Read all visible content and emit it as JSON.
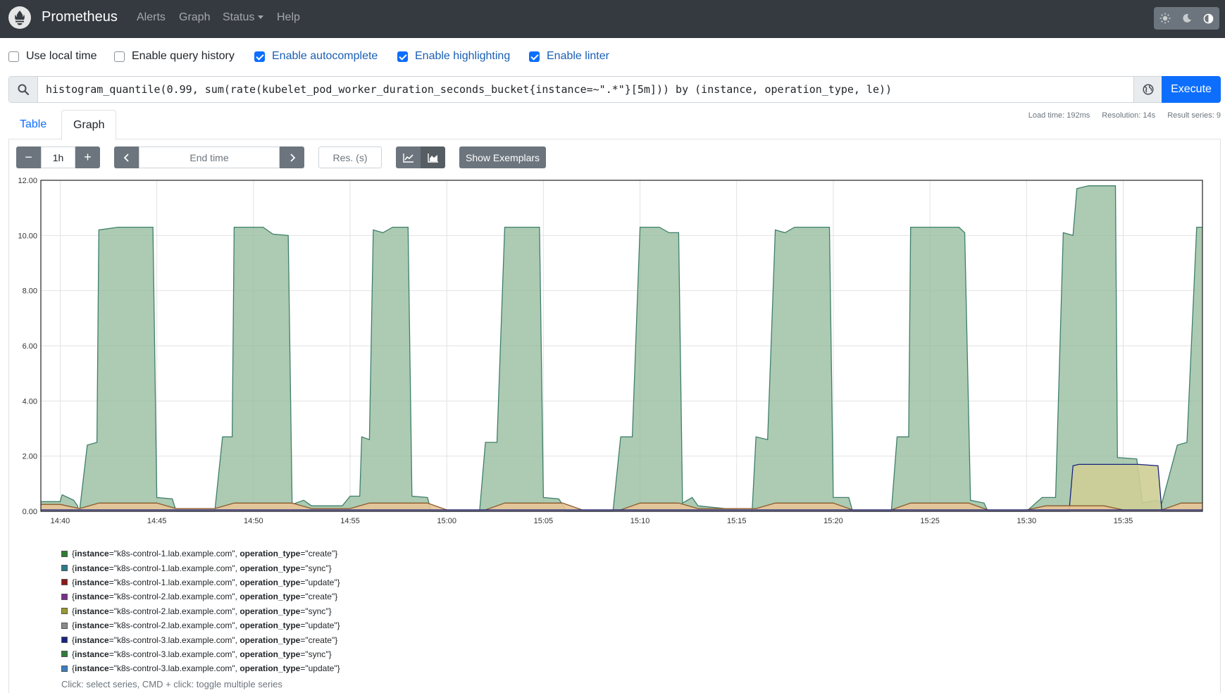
{
  "navbar": {
    "brand": "Prometheus",
    "links": [
      "Alerts",
      "Graph",
      "Status",
      "Help"
    ],
    "theme_icons": [
      "sun-icon",
      "moon-icon",
      "half-circle-icon"
    ]
  },
  "options": [
    {
      "label": "Use local time",
      "checked": false
    },
    {
      "label": "Enable query history",
      "checked": false
    },
    {
      "label": "Enable autocomplete",
      "checked": true
    },
    {
      "label": "Enable highlighting",
      "checked": true
    },
    {
      "label": "Enable linter",
      "checked": true
    }
  ],
  "query": {
    "expression": "histogram_quantile(0.99, sum(rate(kubelet_pod_worker_duration_seconds_bucket{instance=~\".*\"}[5m])) by (instance, operation_type, le))",
    "execute_label": "Execute"
  },
  "tabs": {
    "table": "Table",
    "graph": "Graph"
  },
  "stats": {
    "load_time": "Load time: 192ms",
    "resolution": "Resolution: 14s",
    "result_series": "Result series: 9"
  },
  "controls": {
    "minus": "−",
    "range": "1h",
    "plus": "+",
    "end_time_placeholder": "End time",
    "resolution_placeholder": "Res. (s)",
    "show_exemplars": "Show Exemplars"
  },
  "legend_items": [
    {
      "instance": "k8s-control-1.lab.example.com",
      "operation_type": "create",
      "color": "#2e7d32"
    },
    {
      "instance": "k8s-control-1.lab.example.com",
      "operation_type": "sync",
      "color": "#2b7b8a"
    },
    {
      "instance": "k8s-control-1.lab.example.com",
      "operation_type": "update",
      "color": "#8b1a1a"
    },
    {
      "instance": "k8s-control-2.lab.example.com",
      "operation_type": "create",
      "color": "#7b2d8b"
    },
    {
      "instance": "k8s-control-2.lab.example.com",
      "operation_type": "sync",
      "color": "#9a9a33"
    },
    {
      "instance": "k8s-control-2.lab.example.com",
      "operation_type": "update",
      "color": "#8c8c8c"
    },
    {
      "instance": "k8s-control-3.lab.example.com",
      "operation_type": "create",
      "color": "#1a237e"
    },
    {
      "instance": "k8s-control-3.lab.example.com",
      "operation_type": "sync",
      "color": "#2f7d3a"
    },
    {
      "instance": "k8s-control-3.lab.example.com",
      "operation_type": "update",
      "color": "#3b7fbf"
    }
  ],
  "legend_hint": "Click: select series, CMD + click: toggle multiple series",
  "chart_data": {
    "type": "area",
    "stacked": true,
    "title": "",
    "xlabel": "",
    "ylabel": "",
    "y_ticks": [
      "0.00",
      "2.00",
      "4.00",
      "6.00",
      "8.00",
      "10.00",
      "12.00"
    ],
    "x_ticks": [
      "14:40",
      "14:45",
      "14:50",
      "14:55",
      "15:00",
      "15:05",
      "15:10",
      "15:15",
      "15:20",
      "15:25",
      "15:30",
      "15:35"
    ],
    "xlim_minutes": [
      -1.0,
      59.1
    ],
    "ylim": [
      0,
      12
    ],
    "grid": true,
    "x_unit": "minutes after 14:40",
    "series": [
      {
        "name": "{instance=\"k8s-control-3.lab.example.com\", operation_type=\"sync\"}",
        "color": "#2f7d3a",
        "fill": "rgba(144,185,152,0.75)",
        "line": "#3f7f6a",
        "points": [
          [
            -1,
            0.35
          ],
          [
            0,
            0.35
          ],
          [
            0.1,
            0.6
          ],
          [
            0.7,
            0.4
          ],
          [
            0.9,
            0.2
          ],
          [
            0.95,
            0
          ],
          [
            1.0,
            0
          ],
          [
            1.4,
            2.4
          ],
          [
            1.9,
            2.5
          ],
          [
            2.0,
            10.2
          ],
          [
            3.0,
            10.3
          ],
          [
            4.8,
            10.3
          ],
          [
            5.0,
            0.5
          ],
          [
            5.8,
            0.45
          ],
          [
            6.0,
            0
          ],
          [
            8.0,
            0
          ],
          [
            8.4,
            2.7
          ],
          [
            8.9,
            2.7
          ],
          [
            9.0,
            10.3
          ],
          [
            10.5,
            10.3
          ],
          [
            11.0,
            10.05
          ],
          [
            11.8,
            10.0
          ],
          [
            12.0,
            0.25
          ],
          [
            12.6,
            0.4
          ],
          [
            13.0,
            0.2
          ],
          [
            14.6,
            0.2
          ],
          [
            15.0,
            0.55
          ],
          [
            15.5,
            0.55
          ],
          [
            15.6,
            2.7
          ],
          [
            16.0,
            2.6
          ],
          [
            16.2,
            10.2
          ],
          [
            16.7,
            10.1
          ],
          [
            17.2,
            10.3
          ],
          [
            18.0,
            10.3
          ],
          [
            18.2,
            0.55
          ],
          [
            19.0,
            0.5
          ],
          [
            19.2,
            0
          ],
          [
            21.7,
            0
          ],
          [
            22.0,
            2.5
          ],
          [
            22.6,
            2.5
          ],
          [
            23.0,
            10.3
          ],
          [
            24.8,
            10.3
          ],
          [
            25.0,
            0.5
          ],
          [
            25.8,
            0.45
          ],
          [
            26.2,
            0
          ],
          [
            28.6,
            0
          ],
          [
            29.0,
            2.7
          ],
          [
            29.6,
            2.7
          ],
          [
            30.0,
            10.3
          ],
          [
            31.0,
            10.3
          ],
          [
            31.5,
            10.1
          ],
          [
            32.0,
            10.1
          ],
          [
            32.2,
            0.3
          ],
          [
            32.7,
            0.5
          ],
          [
            33.0,
            0.2
          ],
          [
            35.8,
            0
          ],
          [
            36.0,
            2.7
          ],
          [
            36.6,
            2.6
          ],
          [
            37.0,
            10.2
          ],
          [
            37.5,
            10.1
          ],
          [
            38.0,
            10.3
          ],
          [
            39.8,
            10.3
          ],
          [
            40.0,
            0.5
          ],
          [
            40.8,
            0.5
          ],
          [
            41.0,
            0
          ],
          [
            43.0,
            0
          ],
          [
            43.3,
            2.7
          ],
          [
            43.9,
            2.7
          ],
          [
            44.0,
            10.3
          ],
          [
            46.5,
            10.3
          ],
          [
            46.8,
            10.1
          ],
          [
            47.1,
            0.4
          ],
          [
            47.8,
            0.3
          ],
          [
            48.0,
            0
          ],
          [
            50.0,
            0
          ],
          [
            50.8,
            0.5
          ],
          [
            51.5,
            0.5
          ],
          [
            51.9,
            10.1
          ],
          [
            52.4,
            10.0
          ],
          [
            52.6,
            11.7
          ],
          [
            53.2,
            11.8
          ],
          [
            54.6,
            11.8
          ],
          [
            54.7,
            1.95
          ],
          [
            55.7,
            1.9
          ],
          [
            56.0,
            0.3
          ],
          [
            56.7,
            0.4
          ],
          [
            57.0,
            0.3
          ],
          [
            57.8,
            2.4
          ],
          [
            58.3,
            2.5
          ],
          [
            58.8,
            10.3
          ],
          [
            59.1,
            10.3
          ]
        ]
      },
      {
        "name": "{instance=\"k8s-control-2.lab.example.com\", operation_type=\"sync\"}",
        "color": "#9a9a33",
        "fill": "rgba(206,206,150,0.9)",
        "line": "#1a237e",
        "points": [
          [
            -1,
            0
          ],
          [
            52.2,
            0
          ],
          [
            52.4,
            1.65
          ],
          [
            52.7,
            1.7
          ],
          [
            55.8,
            1.7
          ],
          [
            56.8,
            1.65
          ],
          [
            57.0,
            0
          ],
          [
            59.1,
            0
          ]
        ]
      },
      {
        "name": "{instance=\"k8s-control-1.lab.example.com\", operation_type=\"update\"}",
        "color": "#8b1a1a",
        "fill": "rgba(232,196,150,0.9)",
        "line": "#8b5a2b",
        "points": [
          [
            -1,
            0.25
          ],
          [
            0,
            0.25
          ],
          [
            1,
            0.1
          ],
          [
            2,
            0.3
          ],
          [
            5,
            0.3
          ],
          [
            6,
            0.1
          ],
          [
            8,
            0.1
          ],
          [
            9,
            0.3
          ],
          [
            12,
            0.3
          ],
          [
            13,
            0.1
          ],
          [
            15,
            0.1
          ],
          [
            16,
            0.3
          ],
          [
            19,
            0.3
          ],
          [
            20,
            0.05
          ],
          [
            22,
            0.05
          ],
          [
            23,
            0.3
          ],
          [
            26,
            0.3
          ],
          [
            27,
            0.05
          ],
          [
            29,
            0.05
          ],
          [
            30,
            0.3
          ],
          [
            32,
            0.3
          ],
          [
            33,
            0.1
          ],
          [
            36,
            0.1
          ],
          [
            37,
            0.3
          ],
          [
            40,
            0.3
          ],
          [
            41,
            0.05
          ],
          [
            43,
            0.05
          ],
          [
            44,
            0.3
          ],
          [
            47,
            0.3
          ],
          [
            48,
            0.05
          ],
          [
            50,
            0.05
          ],
          [
            51,
            0.2
          ],
          [
            54,
            0.2
          ],
          [
            55,
            0.05
          ],
          [
            57,
            0.05
          ],
          [
            58,
            0.3
          ],
          [
            59.1,
            0.3
          ]
        ]
      },
      {
        "name": "{instance=\"k8s-control-3.lab.example.com\", operation_type=\"create\"}",
        "color": "#1a237e",
        "fill": "rgba(120,130,200,0.5)",
        "line": "#1a237e",
        "points": [
          [
            -1,
            0.05
          ],
          [
            59.1,
            0.05
          ]
        ]
      }
    ]
  }
}
